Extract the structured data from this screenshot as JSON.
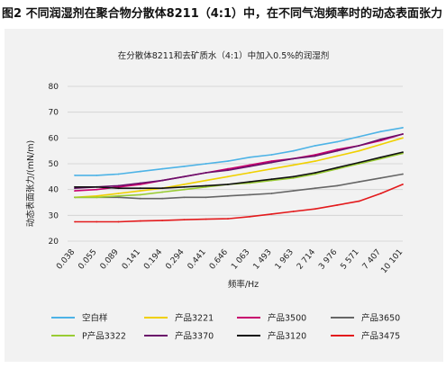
{
  "figure_title": "图2 不同润湿剂在聚合物分散体8211（4:1）中，在不同气泡频率时的动态表面张力",
  "chart_data": {
    "type": "line",
    "title": "在分散体8211和去矿质水（4:1）中加入0.5%的润湿剂",
    "xlabel": "频率/Hz",
    "ylabel": "动态表面张力/(mN/m)",
    "ylim": [
      20,
      80
    ],
    "yticks": [
      20,
      30,
      40,
      50,
      60,
      70,
      80
    ],
    "grid": "horizontal",
    "legend_position": "bottom",
    "categories": [
      "0.038",
      "0.055",
      "0.089",
      "0.141",
      "0.194",
      "0.294",
      "0.441",
      "0.646",
      "1 063",
      "1 493",
      "1 963",
      "2 714",
      "3 976",
      "5 571",
      "7 407",
      "10 101"
    ],
    "series": [
      {
        "name": "空白样",
        "color": "#4db3e6",
        "values": [
          45.5,
          45.5,
          46,
          47,
          48,
          49,
          50,
          51,
          52.5,
          53.5,
          55,
          57,
          58.5,
          60.5,
          62.5,
          64
        ]
      },
      {
        "name": "产品3221",
        "color": "#f0d000",
        "values": [
          37,
          37.5,
          38.5,
          39.5,
          40.5,
          42,
          43.5,
          45,
          46.5,
          48,
          49.5,
          51,
          53,
          55,
          57.5,
          60
        ]
      },
      {
        "name": "产品3500",
        "color": "#c8006e",
        "values": [
          39.5,
          40,
          41,
          42,
          43.5,
          45,
          46.5,
          48,
          49.5,
          51,
          52,
          53.5,
          55.5,
          57,
          59,
          61.5
        ]
      },
      {
        "name": "产品3650",
        "color": "#666666",
        "values": [
          37,
          37,
          37,
          36.5,
          36.5,
          37,
          37,
          37.5,
          38,
          38.5,
          39.5,
          40.5,
          41.5,
          43,
          44.5,
          46
        ]
      },
      {
        "name": "P产品3322",
        "color": "#99cc33",
        "values": [
          37,
          37,
          37.5,
          38,
          39,
          40,
          41,
          42,
          42.5,
          43.5,
          44.5,
          46,
          48,
          50,
          52,
          54
        ]
      },
      {
        "name": "产品3370",
        "color": "#6a0f6a",
        "values": [
          40.5,
          41,
          41.5,
          42.5,
          43.5,
          45,
          46.5,
          47.5,
          49,
          50.5,
          52,
          53,
          55,
          57,
          59.5,
          61.5
        ]
      },
      {
        "name": "产品3120",
        "color": "#111111",
        "values": [
          41,
          41,
          40.5,
          40.5,
          40.5,
          41,
          41.5,
          42,
          43,
          44,
          45,
          46.5,
          48.5,
          50.5,
          52.5,
          54.5
        ]
      },
      {
        "name": "产品3475",
        "color": "#e31a1c",
        "values": [
          27.5,
          27.5,
          27.5,
          27.8,
          28,
          28.3,
          28.5,
          28.7,
          29.5,
          30.5,
          31.5,
          32.5,
          34,
          35.5,
          38.5,
          42
        ]
      }
    ]
  }
}
